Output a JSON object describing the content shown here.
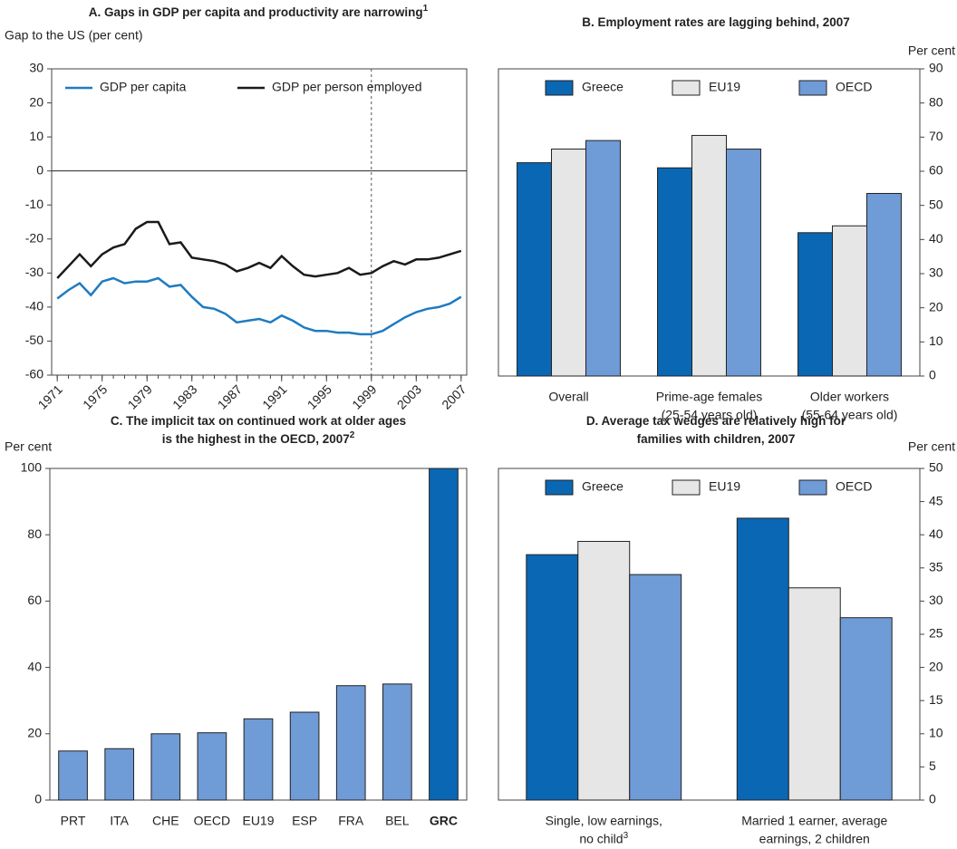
{
  "chart_data": [
    {
      "type": "line",
      "title": "A. Gaps in GDP per capita and productivity are narrowing",
      "title_note": "1",
      "y_label": "Gap to the US (per cent)",
      "x": [
        1971,
        1972,
        1973,
        1974,
        1975,
        1976,
        1977,
        1978,
        1979,
        1980,
        1981,
        1982,
        1983,
        1984,
        1985,
        1986,
        1987,
        1988,
        1989,
        1990,
        1991,
        1992,
        1993,
        1994,
        1995,
        1996,
        1997,
        1998,
        1999,
        2000,
        2001,
        2002,
        2003,
        2004,
        2005,
        2006,
        2007
      ],
      "series": [
        {
          "name": "GDP per capita",
          "color": "#1f7bc1",
          "values": [
            -37.5,
            -35,
            -33,
            -36.5,
            -32.5,
            -31.5,
            -33,
            -32.5,
            -32.5,
            -31.5,
            -34,
            -33.5,
            -37,
            -40,
            -40.5,
            -42,
            -44.5,
            -44,
            -43.5,
            -44.5,
            -42.5,
            -44,
            -46,
            -47,
            -47,
            -47.5,
            -47.5,
            -48,
            -48,
            -47,
            -45,
            -43,
            -41.5,
            -40.5,
            -40,
            -39,
            -37
          ]
        },
        {
          "name": "GDP per person employed",
          "color": "#1a1a1a",
          "values": [
            -31.5,
            -28,
            -24.5,
            -28,
            -24.5,
            -22.5,
            -21.5,
            -17,
            -15,
            -15,
            -21.5,
            -21,
            -25.5,
            -26,
            -26.5,
            -27.5,
            -29.5,
            -28.5,
            -27,
            -28.5,
            -25,
            -28,
            -30.5,
            -31,
            -30.5,
            -30,
            -28.5,
            -30.5,
            -30,
            -28,
            -26.5,
            -27.5,
            -26,
            -26,
            -25.5,
            -24.5,
            -23.5
          ]
        }
      ],
      "xlim": [
        1970.5,
        2007.5
      ],
      "xticks": [
        1971,
        1975,
        1979,
        1983,
        1987,
        1991,
        1995,
        1999,
        2003,
        2007
      ],
      "ylim": [
        -60,
        30
      ],
      "yticks": [
        -60,
        -50,
        -40,
        -30,
        -20,
        -10,
        0,
        10,
        20,
        30
      ],
      "vline": 1999,
      "legend": "upper left"
    },
    {
      "type": "bar",
      "title": "B. Employment rates are lagging behind, 2007",
      "y_label": "Per cent",
      "y_axis_side": "right",
      "categories": [
        [
          "Overall"
        ],
        [
          "Prime-age females",
          "(25-54 years old)"
        ],
        [
          "Older workers",
          "(55-64 years old)"
        ]
      ],
      "series": [
        {
          "name": "Greece",
          "color": "#0a67b4",
          "values": [
            62.5,
            61,
            42
          ]
        },
        {
          "name": "EU19",
          "color": "#e6e6e6",
          "values": [
            66.5,
            70.5,
            44
          ]
        },
        {
          "name": "OECD",
          "color": "#6f9bd6",
          "values": [
            69,
            66.5,
            53.5
          ]
        }
      ],
      "ylim": [
        0,
        90
      ],
      "yticks": [
        0,
        10,
        20,
        30,
        40,
        50,
        60,
        70,
        80,
        90
      ],
      "legend": "upper center"
    },
    {
      "type": "bar",
      "title": [
        "C. The implicit tax on continued work at older ages",
        "is the highest in the OECD, 2007"
      ],
      "title_note": "2",
      "y_label": "Per cent",
      "categories": [
        "PRT",
        "ITA",
        "CHE",
        "OECD",
        "EU19",
        "ESP",
        "FRA",
        "BEL",
        "GRC"
      ],
      "values": [
        14.8,
        15.5,
        20,
        20.3,
        24.5,
        26.5,
        34.5,
        35,
        100
      ],
      "colors": [
        "#6f9bd6",
        "#6f9bd6",
        "#6f9bd6",
        "#6f9bd6",
        "#6f9bd6",
        "#6f9bd6",
        "#6f9bd6",
        "#6f9bd6",
        "#0a67b4"
      ],
      "label_weights": [
        "normal",
        "normal",
        "normal",
        "normal",
        "normal",
        "normal",
        "normal",
        "normal",
        "bold"
      ],
      "ylim": [
        0,
        100
      ],
      "yticks": [
        0,
        20,
        40,
        60,
        80,
        100
      ]
    },
    {
      "type": "bar",
      "title": [
        "D. Average tax wedges are relatively high for",
        "families with children, 2007"
      ],
      "y_label": "Per cent",
      "y_axis_side": "right",
      "categories": [
        [
          "Single, low earnings,",
          "no child"
        ],
        [
          "Married 1 earner, average",
          "earnings, 2 children"
        ]
      ],
      "category_notes": [
        "3",
        null
      ],
      "series": [
        {
          "name": "Greece",
          "color": "#0a67b4",
          "values": [
            37,
            42.5
          ]
        },
        {
          "name": "EU19",
          "color": "#e6e6e6",
          "values": [
            39,
            32
          ]
        },
        {
          "name": "OECD",
          "color": "#6f9bd6",
          "values": [
            34,
            27.5
          ]
        }
      ],
      "ylim": [
        0,
        50
      ],
      "yticks": [
        0,
        5,
        10,
        15,
        20,
        25,
        30,
        35,
        40,
        45,
        50
      ],
      "legend": "upper center"
    }
  ]
}
